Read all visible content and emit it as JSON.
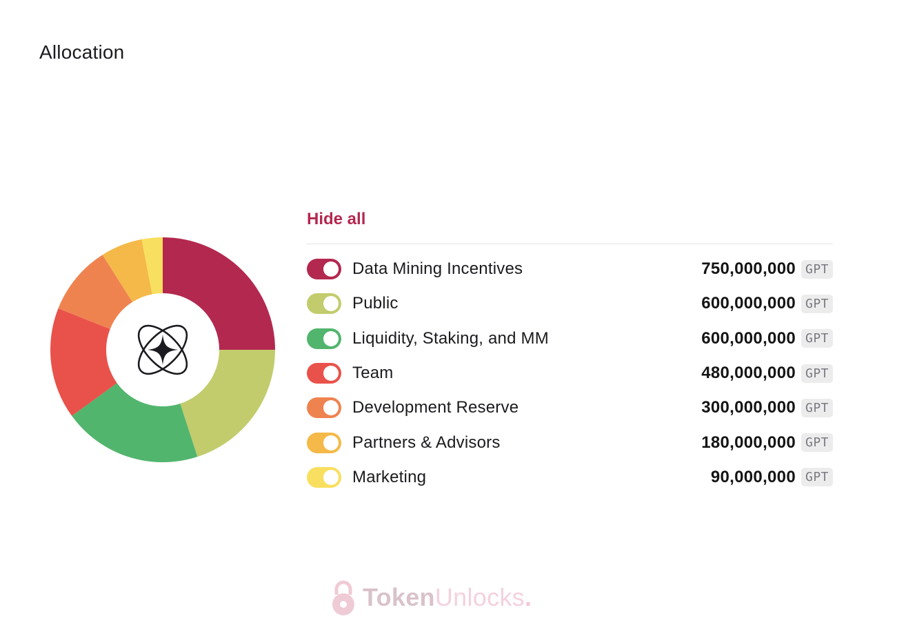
{
  "page": {
    "title": "Allocation"
  },
  "legend": {
    "hide_all_label": "Hide all"
  },
  "chart_data": {
    "type": "pie",
    "title": "Allocation",
    "unit": "GPT",
    "series": [
      {
        "name": "Data Mining Incentives",
        "value": 750000000,
        "display": "750,000,000",
        "color": "#b3284f"
      },
      {
        "name": "Public",
        "value": 600000000,
        "display": "600,000,000",
        "color": "#c2cc6c"
      },
      {
        "name": "Liquidity, Staking, and MM",
        "value": 600000000,
        "display": "600,000,000",
        "color": "#52b56e"
      },
      {
        "name": "Team",
        "value": 480000000,
        "display": "480,000,000",
        "color": "#e9524a"
      },
      {
        "name": "Development Reserve",
        "value": 300000000,
        "display": "300,000,000",
        "color": "#ef8350"
      },
      {
        "name": "Partners & Advisors",
        "value": 180000000,
        "display": "180,000,000",
        "color": "#f4b948"
      },
      {
        "name": "Marketing",
        "value": 90000000,
        "display": "90,000,000",
        "color": "#f9df5f"
      }
    ]
  },
  "watermark": {
    "part1": "Token",
    "part2": "Unlocks",
    "dot": ".",
    "icon": "lock-icon"
  }
}
